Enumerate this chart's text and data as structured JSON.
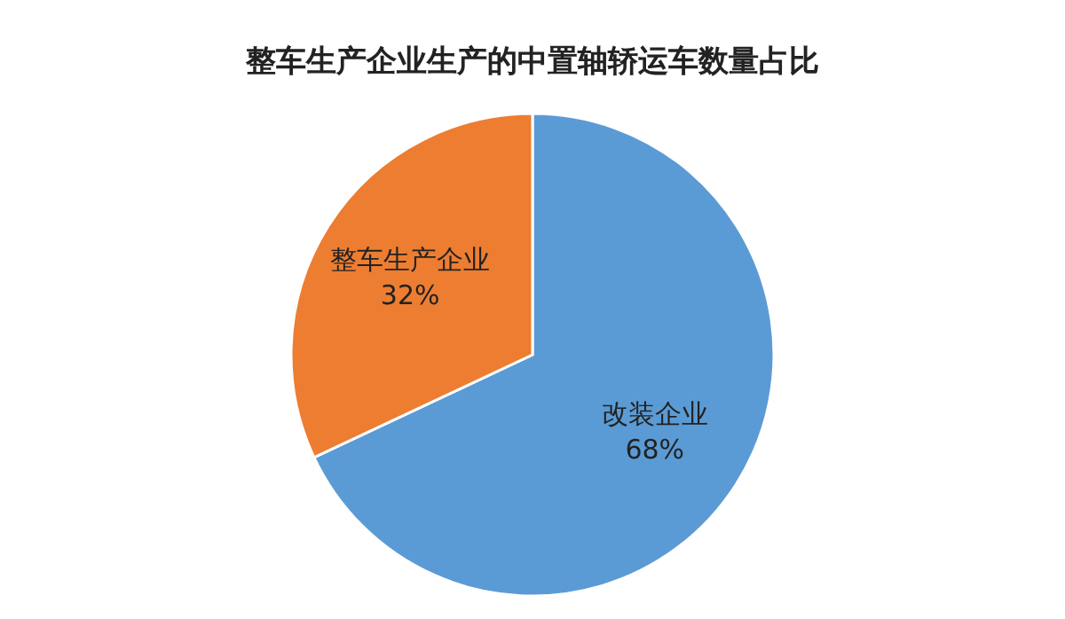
{
  "chart_data": {
    "type": "pie",
    "title": "整车生产企业生产的中置轴轿运车数量占比",
    "categories": [
      "改装企业",
      "整车生产企业"
    ],
    "values": [
      68,
      32
    ],
    "colors": [
      "#5b9bd5",
      "#ed7d31"
    ],
    "value_labels": [
      "68%",
      "32%"
    ],
    "legend": false
  }
}
